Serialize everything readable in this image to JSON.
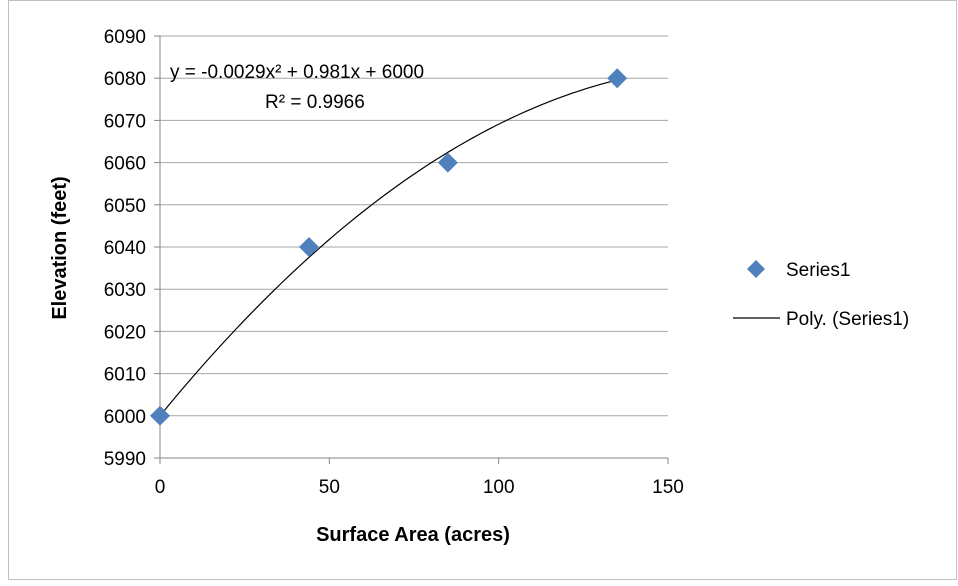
{
  "chart_data": {
    "type": "scatter",
    "title": "",
    "xlabel": "Surface Area (acres)",
    "ylabel": "Elevation (feet)",
    "xlim": [
      0,
      150
    ],
    "ylim": [
      5990,
      6090
    ],
    "xticks": [
      0,
      50,
      100,
      150
    ],
    "yticks": [
      5990,
      6000,
      6010,
      6020,
      6030,
      6040,
      6050,
      6060,
      6070,
      6080,
      6090
    ],
    "grid": {
      "horizontal": true,
      "vertical": false
    },
    "legend_position": "right",
    "series": [
      {
        "name": "Series1",
        "marker": "diamond",
        "color": "#4F81BD",
        "x": [
          0,
          44,
          85,
          135
        ],
        "y": [
          6000,
          6040,
          6060,
          6080
        ]
      }
    ],
    "trendline": {
      "name": "Poly. (Series1)",
      "type": "polynomial",
      "coefficients": {
        "a": -0.0029,
        "b": 0.981,
        "c": 6000
      },
      "x_range": [
        0,
        135
      ],
      "color": "#000000",
      "equation": "y = -0.0029x² + 0.981x + 6000",
      "r_squared": "R² = 0.9966"
    }
  }
}
